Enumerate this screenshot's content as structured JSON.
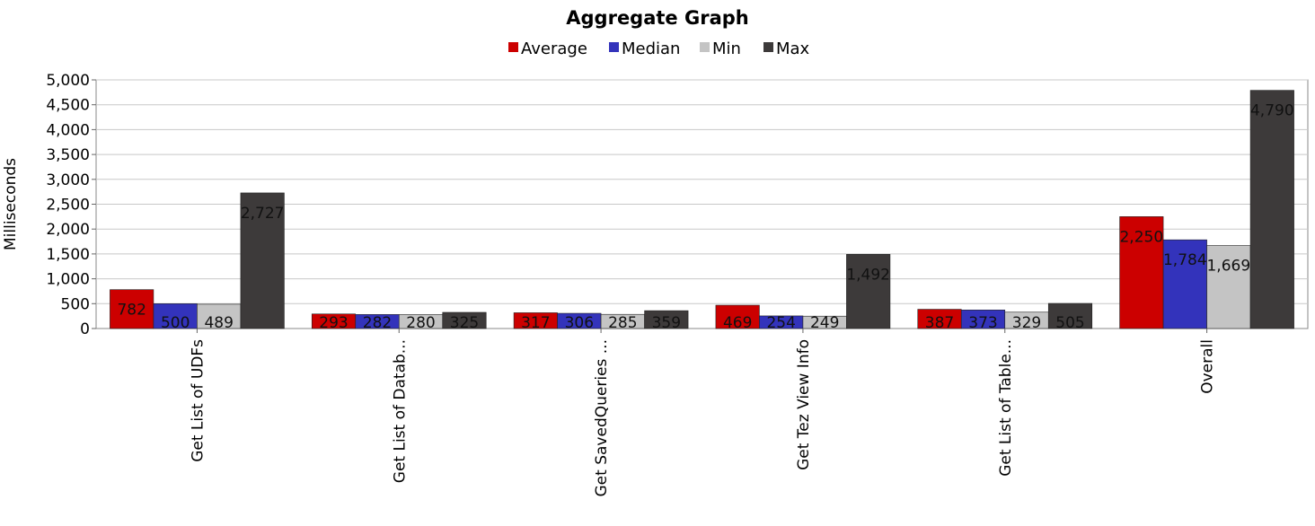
{
  "chart_data": {
    "type": "bar",
    "title": "Aggregate Graph",
    "xlabel": "",
    "ylabel": "Milliseconds",
    "ylim": [
      0,
      5000
    ],
    "yticks": [
      0,
      500,
      1000,
      1500,
      2000,
      2500,
      3000,
      3500,
      4000,
      4500,
      5000
    ],
    "ytick_labels": [
      "0",
      "500",
      "1,000",
      "1,500",
      "2,000",
      "2,500",
      "3,000",
      "3,500",
      "4,000",
      "4,500",
      "5,000"
    ],
    "grid": true,
    "legend_position": "top-center",
    "categories": [
      "Get List of UDFs",
      "Get List of Datab...",
      "Get SavedQueries ...",
      "Get Tez View Info",
      "Get List of Table...",
      "Overall"
    ],
    "series": [
      {
        "name": "Average",
        "color": "#cc0000",
        "values": [
          782,
          293,
          317,
          469,
          387,
          2250
        ],
        "labels": [
          "782",
          "293",
          "317",
          "469",
          "387",
          "2,250"
        ]
      },
      {
        "name": "Median",
        "color": "#3333bb",
        "values": [
          500,
          282,
          306,
          254,
          373,
          1784
        ],
        "labels": [
          "500",
          "282",
          "306",
          "254",
          "373",
          "1,784"
        ]
      },
      {
        "name": "Min",
        "color": "#c4c4c4",
        "values": [
          489,
          280,
          285,
          249,
          329,
          1669
        ],
        "labels": [
          "489",
          "280",
          "285",
          "249",
          "329",
          "1,669"
        ]
      },
      {
        "name": "Max",
        "color": "#3d3a3a",
        "values": [
          2727,
          325,
          359,
          1492,
          505,
          4790
        ],
        "labels": [
          "2,727",
          "325",
          "359",
          "1,492",
          "505",
          "4,790"
        ]
      }
    ]
  }
}
